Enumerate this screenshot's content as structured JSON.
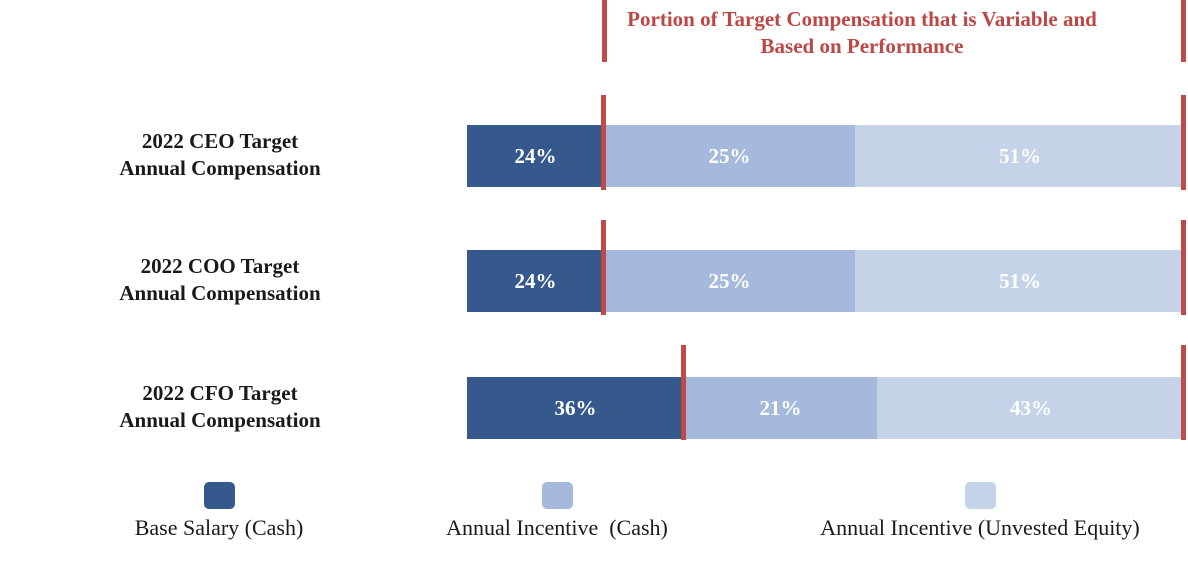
{
  "colors": {
    "base_salary": "#35598D",
    "annual_incentive_cash": "#A4B9DC",
    "annual_incentive_equity": "#C5D3E8",
    "bracket_red": "#BE4B48",
    "title_red": "#BC4744",
    "percent_text": "#FFFFFF",
    "label_text": "#1A1A1A"
  },
  "chart_data": {
    "type": "bar",
    "orientation": "horizontal",
    "stacked": true,
    "title": "Portion of Target Compensation that is Variable and Based on Performance",
    "categories": [
      "2022 CEO Target Annual Compensation",
      "2022 COO Target Annual Compensation",
      "2022 CFO Target Annual Compensation"
    ],
    "series": [
      {
        "name": "Base Salary (Cash)",
        "color": "#35598D",
        "values": [
          24,
          24,
          36
        ]
      },
      {
        "name": "Annual Incentive  (Cash)",
        "color": "#A4B9DC",
        "values": [
          25,
          25,
          21
        ]
      },
      {
        "name": "Annual Incentive (Unvested Equity)",
        "color": "#C5D3E8",
        "values": [
          51,
          51,
          43
        ]
      }
    ],
    "value_unit": "%",
    "annotations": [
      "Red vertical bracket lines enclose the variable, performance-based portion of each bar (all segments except Base Salary)"
    ],
    "legend_position": "bottom",
    "grid": false,
    "axes_shown": false
  },
  "title": "Portion of Target Compensation that is Variable and Based on Performance",
  "rows": [
    {
      "label_line1": "2022 CEO Target",
      "label_line2": "Annual Compensation",
      "segments": [
        {
          "label": "24%"
        },
        {
          "label": "25%"
        },
        {
          "label": "51%"
        }
      ]
    },
    {
      "label_line1": "2022 COO Target",
      "label_line2": "Annual Compensation",
      "segments": [
        {
          "label": "24%"
        },
        {
          "label": "25%"
        },
        {
          "label": "51%"
        }
      ]
    },
    {
      "label_line1": "2022 CFO Target",
      "label_line2": "Annual Compensation",
      "segments": [
        {
          "label": "36%"
        },
        {
          "label": "21%"
        },
        {
          "label": "43%"
        }
      ]
    }
  ],
  "legend": {
    "items": [
      {
        "label": "Base Salary (Cash)"
      },
      {
        "label": "Annual Incentive  (Cash)"
      },
      {
        "label": "Annual Incentive (Unvested Equity)"
      }
    ]
  }
}
